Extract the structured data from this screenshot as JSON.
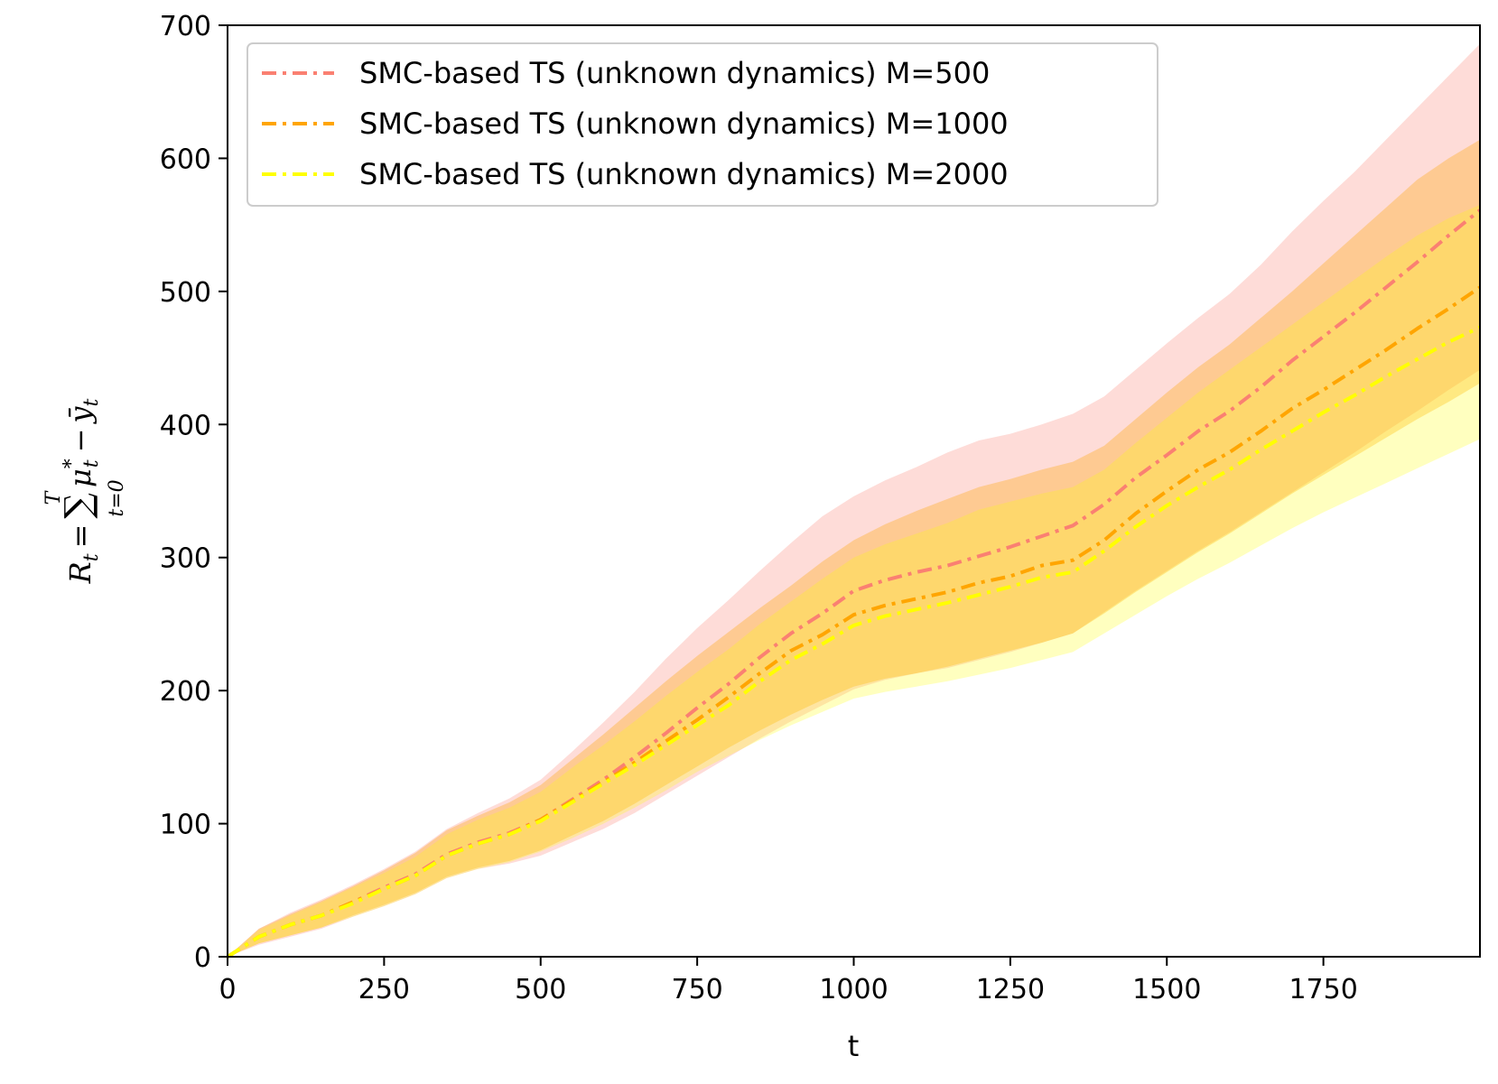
{
  "chart_data": {
    "type": "line",
    "title": "",
    "xlabel": "t",
    "ylabel": {
      "lhs": "R",
      "lhs_sub": "t",
      "eq": "=",
      "sum": "∑",
      "sum_upper": "T",
      "sum_lower": "t=0",
      "mu": "μ",
      "mu_sup": "*",
      "mu_sub": "t",
      "minus": "−",
      "y": "ȳ",
      "y_sub": "t"
    },
    "xlim": [
      0,
      2000
    ],
    "ylim": [
      0,
      700
    ],
    "xticks": [
      0,
      250,
      500,
      750,
      1000,
      1250,
      1500,
      1750
    ],
    "yticks": [
      0,
      100,
      200,
      300,
      400,
      500,
      600,
      700
    ],
    "xtick_labels": [
      "0",
      "250",
      "500",
      "750",
      "1000",
      "1250",
      "1500",
      "1750"
    ],
    "ytick_labels": [
      "0",
      "100",
      "200",
      "300",
      "400",
      "500",
      "600",
      "700"
    ],
    "legend_position": "upper-left",
    "x": [
      0,
      50,
      100,
      150,
      200,
      250,
      300,
      350,
      400,
      450,
      500,
      550,
      600,
      650,
      700,
      750,
      800,
      850,
      900,
      950,
      1000,
      1050,
      1100,
      1150,
      1200,
      1250,
      1300,
      1350,
      1400,
      1450,
      1500,
      1550,
      1600,
      1650,
      1700,
      1750,
      1800,
      1850,
      1900,
      1950,
      2000
    ],
    "series": [
      {
        "name": "SMC-based TS (unknown dynamics) M=500",
        "color": "#fa8072",
        "band_color": "#fa8072",
        "band_opacity": 0.28,
        "linestyle": "dashdot",
        "mean": [
          0,
          15,
          24,
          31,
          41,
          52,
          62,
          77,
          86,
          93,
          103,
          118,
          133,
          150,
          168,
          187,
          205,
          225,
          243,
          258,
          275,
          283,
          289,
          294,
          301,
          308,
          316,
          324,
          340,
          360,
          377,
          395,
          410,
          428,
          448,
          466,
          484,
          503,
          522,
          542,
          561
        ],
        "upper": [
          0,
          21,
          33,
          43,
          54,
          66,
          79,
          96,
          108,
          119,
          133,
          154,
          176,
          199,
          224,
          247,
          268,
          290,
          311,
          331,
          346,
          358,
          368,
          379,
          388,
          393,
          400,
          408,
          421,
          441,
          461,
          480,
          498,
          520,
          545,
          568,
          590,
          614,
          638,
          662,
          686
        ],
        "lower": [
          0,
          9,
          15,
          21,
          30,
          38,
          47,
          59,
          66,
          70,
          76,
          86,
          96,
          108,
          122,
          136,
          150,
          164,
          177,
          189,
          201,
          208,
          213,
          217,
          223,
          229,
          236,
          243,
          259,
          275,
          290,
          305,
          319,
          334,
          349,
          364,
          379,
          395,
          410,
          426,
          441
        ]
      },
      {
        "name": "SMC-based TS (unknown dynamics) M=1000",
        "color": "#ffa500",
        "band_color": "#ffa500",
        "band_opacity": 0.32,
        "linestyle": "dashdot",
        "mean": [
          0,
          15,
          24,
          31,
          41,
          51,
          61,
          76,
          85,
          92,
          103,
          117,
          131,
          146,
          162,
          178,
          195,
          213,
          230,
          242,
          257,
          264,
          269,
          274,
          281,
          286,
          294,
          298,
          313,
          333,
          350,
          366,
          379,
          395,
          412,
          426,
          441,
          456,
          472,
          487,
          503
        ],
        "upper": [
          0,
          21,
          32,
          42,
          53,
          65,
          78,
          95,
          106,
          116,
          129,
          148,
          167,
          187,
          207,
          226,
          244,
          262,
          279,
          297,
          313,
          325,
          335,
          344,
          353,
          359,
          366,
          372,
          384,
          404,
          424,
          443,
          460,
          480,
          500,
          521,
          542,
          563,
          584,
          600,
          614
        ],
        "lower": [
          0,
          10,
          16,
          22,
          31,
          39,
          48,
          60,
          67,
          72,
          80,
          91,
          102,
          115,
          129,
          143,
          157,
          170,
          182,
          193,
          203,
          209,
          213,
          218,
          224,
          230,
          236,
          243,
          258,
          274,
          289,
          304,
          318,
          333,
          348,
          362,
          376,
          390,
          404,
          417,
          431
        ]
      },
      {
        "name": "SMC-based TS (unknown dynamics) M=2000",
        "color": "#ffff00",
        "band_color": "#ffff00",
        "band_opacity": 0.25,
        "linestyle": "dashdot",
        "mean": [
          0,
          15,
          24,
          31,
          40,
          51,
          61,
          76,
          85,
          92,
          102,
          116,
          130,
          144,
          159,
          174,
          189,
          207,
          223,
          235,
          249,
          256,
          261,
          266,
          272,
          278,
          285,
          289,
          305,
          323,
          339,
          353,
          366,
          381,
          395,
          409,
          422,
          436,
          449,
          462,
          473
        ],
        "upper": [
          0,
          20,
          31,
          41,
          52,
          63,
          75,
          92,
          103,
          112,
          124,
          142,
          159,
          177,
          196,
          214,
          231,
          250,
          267,
          284,
          300,
          310,
          318,
          326,
          336,
          342,
          348,
          353,
          366,
          386,
          405,
          424,
          441,
          458,
          475,
          492,
          509,
          526,
          542,
          555,
          565
        ],
        "lower": [
          0,
          10,
          16,
          22,
          30,
          38,
          47,
          59,
          66,
          71,
          79,
          89,
          100,
          112,
          125,
          139,
          151,
          163,
          174,
          184,
          194,
          199,
          203,
          207,
          212,
          217,
          223,
          229,
          243,
          257,
          271,
          284,
          296,
          309,
          322,
          334,
          345,
          356,
          367,
          378,
          389
        ]
      }
    ]
  }
}
